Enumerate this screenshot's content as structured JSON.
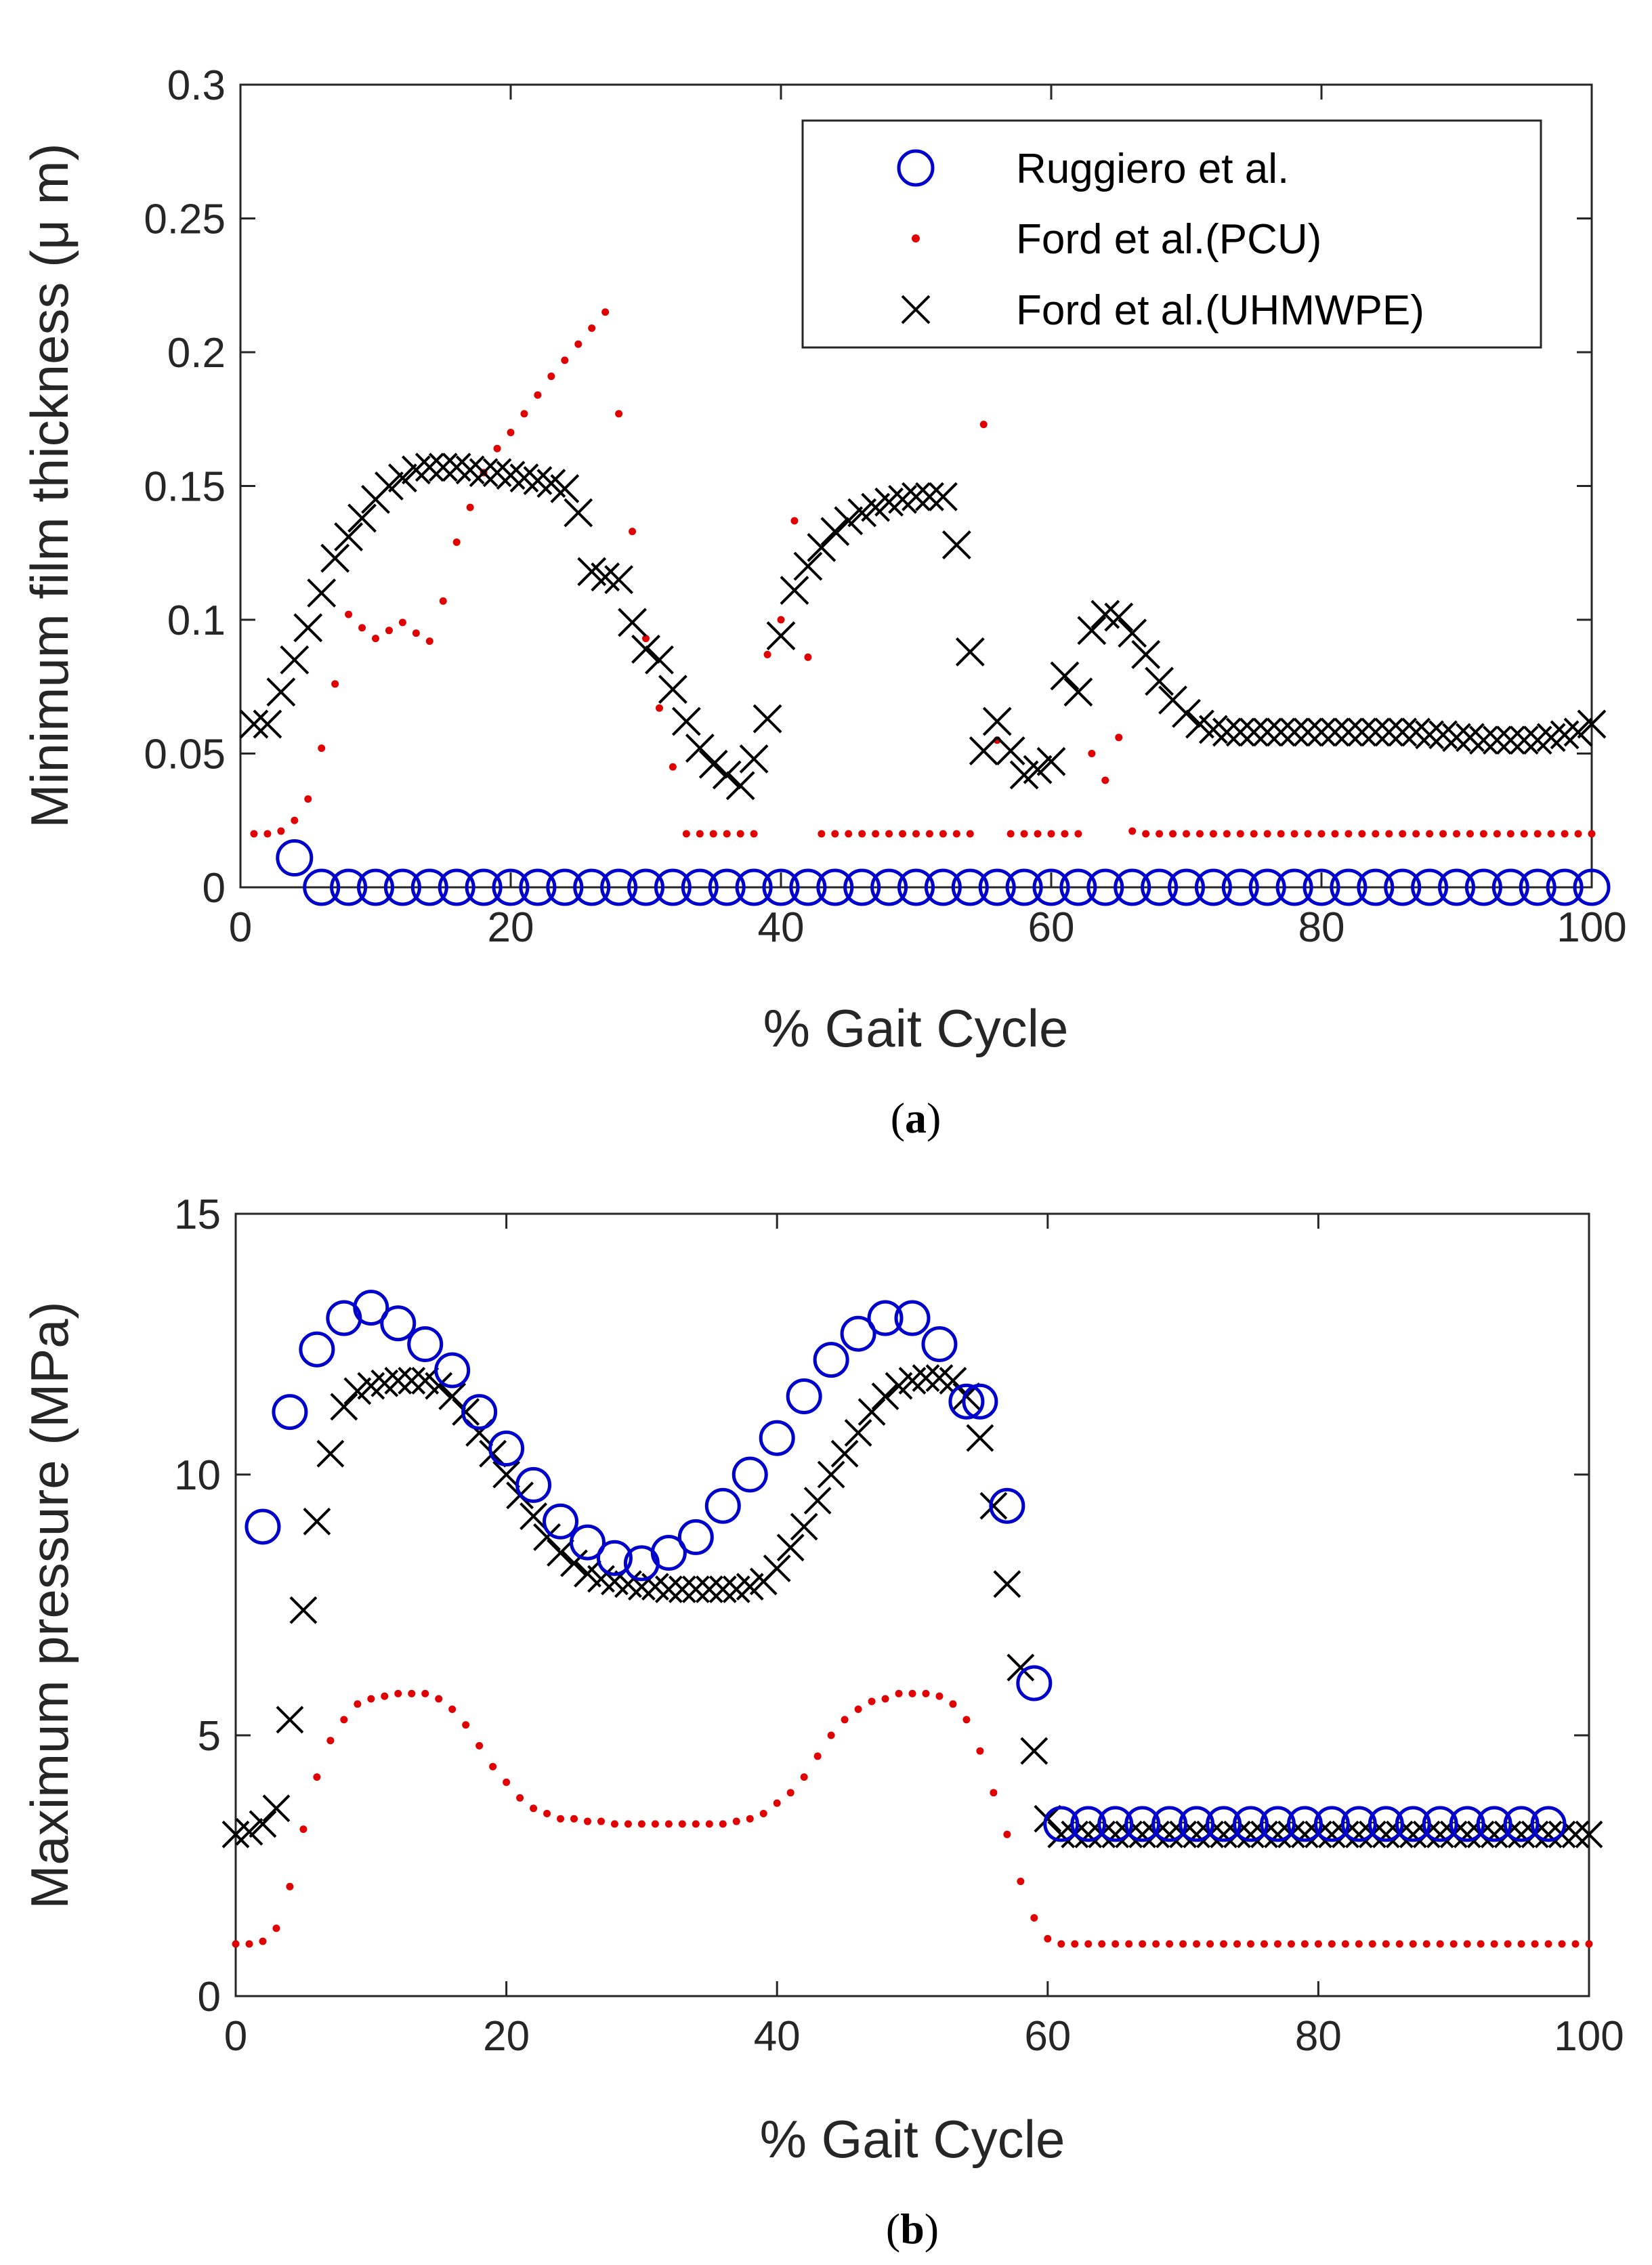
{
  "colors": {
    "blue": "#0000cc",
    "red": "#e00000",
    "black": "#000000",
    "axis": "#262626"
  },
  "chart_data": [
    {
      "type": "scatter",
      "panel_label": "(a)",
      "panel_letter": "a",
      "xlabel": "% Gait Cycle",
      "ylabel": "Minimum film thickness (μ m)",
      "xlim": [
        0,
        100
      ],
      "ylim": [
        0,
        0.3
      ],
      "xticks": [
        0,
        20,
        40,
        60,
        80,
        100
      ],
      "yticks": [
        0,
        0.05,
        0.1,
        0.15,
        0.2,
        0.25,
        0.3
      ],
      "xtick_labels": [
        "0",
        "20",
        "40",
        "60",
        "80",
        "100"
      ],
      "ytick_labels": [
        "0",
        "0.05",
        "0.1",
        "0.15",
        "0.2",
        "0.25",
        "0.3"
      ],
      "legend": {
        "position": "top-right",
        "entries": [
          "Ruggiero et al.",
          "Ford et al.(PCU)",
          "Ford et al.(UHMWPE)"
        ]
      },
      "series": [
        {
          "name": "Ruggiero et al.",
          "marker": "circle",
          "color": "#0000cc",
          "x": [
            4,
            6,
            8,
            10,
            12,
            14,
            16,
            18,
            20,
            22,
            24,
            26,
            28,
            30,
            32,
            34,
            36,
            38,
            40,
            42,
            44,
            46,
            48,
            50,
            52,
            54,
            56,
            58,
            60,
            62,
            64,
            66,
            68,
            70,
            72,
            74,
            76,
            78,
            80,
            82,
            84,
            86,
            88,
            90,
            92,
            94,
            96,
            98,
            100
          ],
          "y": [
            0.011,
            0,
            0,
            0,
            0,
            0,
            0,
            0,
            0,
            0,
            0,
            0,
            0,
            0,
            0,
            0,
            0,
            0,
            0,
            0,
            0,
            0,
            0,
            0,
            0,
            0,
            0,
            0,
            0,
            0,
            0,
            0,
            0,
            0,
            0,
            0,
            0,
            0,
            0,
            0,
            0,
            0,
            0,
            0,
            0,
            0,
            0,
            0,
            0
          ]
        },
        {
          "name": "Ford et al.(PCU)",
          "marker": "dot",
          "color": "#e00000",
          "x": [
            1,
            2,
            3,
            4,
            5,
            6,
            7,
            8,
            9,
            10,
            11,
            12,
            13,
            14,
            15,
            16,
            17,
            18,
            19,
            20,
            21,
            22,
            23,
            24,
            25,
            26,
            27,
            28,
            29,
            30,
            31,
            32,
            33,
            34,
            35,
            36,
            37,
            38,
            39,
            40,
            41,
            42,
            43,
            44,
            45,
            46,
            47,
            48,
            49,
            50,
            51,
            52,
            53,
            54,
            55,
            56,
            57,
            58,
            59,
            60,
            61,
            62,
            63,
            64,
            65,
            66,
            67,
            68,
            69,
            70,
            71,
            72,
            73,
            74,
            75,
            76,
            77,
            78,
            79,
            80,
            81,
            82,
            83,
            84,
            85,
            86,
            87,
            88,
            89,
            90,
            91,
            92,
            93,
            94,
            95,
            96,
            97,
            98,
            99,
            100
          ],
          "y": [
            0.02,
            0.02,
            0.021,
            0.025,
            0.033,
            0.052,
            0.076,
            0.102,
            0.097,
            0.093,
            0.096,
            0.099,
            0.095,
            0.092,
            0.107,
            0.129,
            0.142,
            0.155,
            0.164,
            0.17,
            0.177,
            0.184,
            0.191,
            0.197,
            0.203,
            0.209,
            0.215,
            0.177,
            0.133,
            0.093,
            0.067,
            0.045,
            0.02,
            0.02,
            0.02,
            0.02,
            0.02,
            0.02,
            0.087,
            0.1,
            0.137,
            0.086,
            0.02,
            0.02,
            0.02,
            0.02,
            0.02,
            0.02,
            0.02,
            0.02,
            0.02,
            0.02,
            0.02,
            0.02,
            0.173,
            0.055,
            0.02,
            0.02,
            0.02,
            0.02,
            0.02,
            0.02,
            0.05,
            0.04,
            0.056,
            0.021,
            0.02,
            0.02,
            0.02,
            0.02,
            0.02,
            0.02,
            0.02,
            0.02,
            0.02,
            0.02,
            0.02,
            0.02,
            0.02,
            0.02,
            0.02,
            0.02,
            0.02,
            0.02,
            0.02,
            0.02,
            0.02,
            0.02,
            0.02,
            0.02,
            0.02,
            0.02,
            0.02,
            0.02,
            0.02,
            0.02,
            0.02,
            0.02,
            0.02,
            0.02
          ]
        },
        {
          "name": "Ford et al.(UHMWPE)",
          "marker": "x",
          "color": "#000000",
          "x": [
            1,
            2,
            3,
            4,
            5,
            6,
            7,
            8,
            9,
            10,
            11,
            12,
            13,
            14,
            15,
            16,
            17,
            18,
            19,
            20,
            21,
            22,
            23,
            24,
            25,
            26,
            27,
            28,
            29,
            30,
            31,
            32,
            33,
            34,
            35,
            36,
            37,
            38,
            39,
            40,
            41,
            42,
            43,
            44,
            45,
            46,
            47,
            48,
            49,
            50,
            51,
            52,
            53,
            54,
            55,
            56,
            57,
            58,
            59,
            60,
            61,
            62,
            63,
            64,
            65,
            66,
            67,
            68,
            69,
            70,
            71,
            72,
            73,
            74,
            75,
            76,
            77,
            78,
            79,
            80,
            81,
            82,
            83,
            84,
            85,
            86,
            87,
            88,
            89,
            90,
            91,
            92,
            93,
            94,
            95,
            96,
            97,
            98,
            99,
            100
          ],
          "y": [
            0.061,
            0.061,
            0.073,
            0.085,
            0.097,
            0.11,
            0.123,
            0.131,
            0.138,
            0.145,
            0.15,
            0.153,
            0.156,
            0.157,
            0.157,
            0.157,
            0.156,
            0.155,
            0.155,
            0.154,
            0.153,
            0.152,
            0.151,
            0.149,
            0.14,
            0.118,
            0.116,
            0.115,
            0.099,
            0.089,
            0.085,
            0.074,
            0.062,
            0.052,
            0.046,
            0.042,
            0.038,
            0.048,
            0.063,
            0.094,
            0.111,
            0.12,
            0.127,
            0.133,
            0.137,
            0.14,
            0.142,
            0.144,
            0.145,
            0.146,
            0.146,
            0.146,
            0.128,
            0.088,
            0.051,
            0.062,
            0.051,
            0.042,
            0.044,
            0.047,
            0.079,
            0.073,
            0.096,
            0.102,
            0.101,
            0.095,
            0.087,
            0.077,
            0.07,
            0.065,
            0.061,
            0.059,
            0.058,
            0.058,
            0.058,
            0.058,
            0.058,
            0.058,
            0.058,
            0.058,
            0.058,
            0.058,
            0.058,
            0.058,
            0.058,
            0.058,
            0.058,
            0.057,
            0.057,
            0.056,
            0.056,
            0.055,
            0.055,
            0.055,
            0.055,
            0.055,
            0.056,
            0.057,
            0.058,
            0.061
          ]
        }
      ]
    },
    {
      "type": "scatter",
      "panel_label": "(b)",
      "panel_letter": "b",
      "xlabel": "% Gait Cycle",
      "ylabel": "Maximum pressure (MPa)",
      "xlim": [
        0,
        100
      ],
      "ylim": [
        0,
        15
      ],
      "xticks": [
        0,
        20,
        40,
        60,
        80,
        100
      ],
      "yticks": [
        0,
        5,
        10,
        15
      ],
      "xtick_labels": [
        "0",
        "20",
        "40",
        "60",
        "80",
        "100"
      ],
      "ytick_labels": [
        "0",
        "5",
        "10",
        "15"
      ],
      "series": [
        {
          "name": "Ruggiero et al.",
          "marker": "circle",
          "color": "#0000cc",
          "x": [
            2,
            4,
            6,
            8,
            10,
            12,
            14,
            16,
            18,
            20,
            22,
            24,
            26,
            28,
            30,
            32,
            34,
            36,
            38,
            40,
            42,
            44,
            46,
            48,
            50,
            52,
            54,
            55,
            57,
            59,
            61,
            63,
            65,
            67,
            69,
            71,
            73,
            75,
            77,
            79,
            81,
            83,
            85,
            87,
            89,
            91,
            93,
            95,
            97
          ],
          "y": [
            9.0,
            11.2,
            12.4,
            13.0,
            13.2,
            12.9,
            12.5,
            12.0,
            11.2,
            10.5,
            9.8,
            9.1,
            8.7,
            8.4,
            8.3,
            8.5,
            8.8,
            9.4,
            10.0,
            10.7,
            11.5,
            12.2,
            12.7,
            13.0,
            13.0,
            12.5,
            11.4,
            11.4,
            9.4,
            6.0,
            3.3,
            3.3,
            3.3,
            3.3,
            3.3,
            3.3,
            3.3,
            3.3,
            3.3,
            3.3,
            3.3,
            3.3,
            3.3,
            3.3,
            3.3,
            3.3,
            3.3,
            3.3,
            3.3
          ]
        },
        {
          "name": "Ford et al.(PCU)",
          "marker": "dot",
          "color": "#e00000",
          "x": [
            0,
            1,
            2,
            3,
            4,
            5,
            6,
            7,
            8,
            9,
            10,
            11,
            12,
            13,
            14,
            15,
            16,
            17,
            18,
            19,
            20,
            21,
            22,
            23,
            24,
            25,
            26,
            27,
            28,
            29,
            30,
            31,
            32,
            33,
            34,
            35,
            36,
            37,
            38,
            39,
            40,
            41,
            42,
            43,
            44,
            45,
            46,
            47,
            48,
            49,
            50,
            51,
            52,
            53,
            54,
            55,
            56,
            57,
            58,
            59,
            60,
            61,
            62,
            63,
            64,
            65,
            66,
            67,
            68,
            69,
            70,
            71,
            72,
            73,
            74,
            75,
            76,
            77,
            78,
            79,
            80,
            81,
            82,
            83,
            84,
            85,
            86,
            87,
            88,
            89,
            90,
            91,
            92,
            93,
            94,
            95,
            96,
            97,
            98,
            99,
            100
          ],
          "y": [
            1.0,
            1.0,
            1.05,
            1.3,
            2.1,
            3.2,
            4.2,
            4.9,
            5.3,
            5.6,
            5.7,
            5.75,
            5.8,
            5.8,
            5.8,
            5.7,
            5.5,
            5.2,
            4.8,
            4.4,
            4.1,
            3.8,
            3.6,
            3.5,
            3.4,
            3.4,
            3.35,
            3.35,
            3.3,
            3.3,
            3.3,
            3.3,
            3.3,
            3.3,
            3.3,
            3.3,
            3.3,
            3.35,
            3.4,
            3.5,
            3.7,
            3.9,
            4.2,
            4.6,
            5.0,
            5.3,
            5.5,
            5.65,
            5.7,
            5.8,
            5.8,
            5.8,
            5.75,
            5.6,
            5.3,
            4.7,
            3.9,
            3.1,
            2.2,
            1.5,
            1.1,
            1.0,
            1.0,
            1.0,
            1.0,
            1.0,
            1.0,
            1.0,
            1.0,
            1.0,
            1.0,
            1.0,
            1.0,
            1.0,
            1.0,
            1.0,
            1.0,
            1.0,
            1.0,
            1.0,
            1.0,
            1.0,
            1.0,
            1.0,
            1.0,
            1.0,
            1.0,
            1.0,
            1.0,
            1.0,
            1.0,
            1.0,
            1.0,
            1.0,
            1.0,
            1.0,
            1.0,
            1.0,
            1.0,
            1.0,
            1.0
          ]
        },
        {
          "name": "Ford et al.(UHMWPE)",
          "marker": "x",
          "color": "#000000",
          "x": [
            0,
            1,
            2,
            3,
            4,
            5,
            6,
            7,
            8,
            9,
            10,
            11,
            12,
            13,
            14,
            15,
            16,
            17,
            18,
            19,
            20,
            21,
            22,
            23,
            24,
            25,
            26,
            27,
            28,
            29,
            30,
            31,
            32,
            33,
            34,
            35,
            36,
            37,
            38,
            39,
            40,
            41,
            42,
            43,
            44,
            45,
            46,
            47,
            48,
            49,
            50,
            51,
            52,
            53,
            54,
            55,
            56,
            57,
            58,
            59,
            60,
            61,
            62,
            63,
            64,
            65,
            66,
            67,
            68,
            69,
            70,
            71,
            72,
            73,
            74,
            75,
            76,
            77,
            78,
            79,
            80,
            81,
            82,
            83,
            84,
            85,
            86,
            87,
            88,
            89,
            90,
            91,
            92,
            93,
            94,
            95,
            96,
            97,
            98,
            99,
            100
          ],
          "y": [
            3.1,
            3.15,
            3.3,
            3.6,
            5.3,
            7.4,
            9.1,
            10.4,
            11.3,
            11.6,
            11.7,
            11.75,
            11.8,
            11.8,
            11.8,
            11.7,
            11.5,
            11.2,
            10.8,
            10.4,
            10.0,
            9.6,
            9.2,
            8.8,
            8.5,
            8.3,
            8.1,
            8.0,
            7.95,
            7.9,
            7.85,
            7.85,
            7.8,
            7.8,
            7.8,
            7.8,
            7.8,
            7.8,
            7.85,
            7.95,
            8.2,
            8.6,
            9.0,
            9.5,
            10.0,
            10.4,
            10.8,
            11.2,
            11.5,
            11.7,
            11.8,
            11.85,
            11.85,
            11.8,
            11.5,
            10.7,
            9.4,
            7.9,
            6.3,
            4.7,
            3.4,
            3.1,
            3.1,
            3.1,
            3.1,
            3.1,
            3.1,
            3.1,
            3.1,
            3.1,
            3.1,
            3.1,
            3.1,
            3.1,
            3.1,
            3.1,
            3.1,
            3.1,
            3.1,
            3.1,
            3.1,
            3.1,
            3.1,
            3.1,
            3.1,
            3.1,
            3.1,
            3.1,
            3.1,
            3.1,
            3.1,
            3.1,
            3.1,
            3.1,
            3.1,
            3.1,
            3.1,
            3.1,
            3.1,
            3.1,
            3.1
          ]
        }
      ]
    }
  ]
}
